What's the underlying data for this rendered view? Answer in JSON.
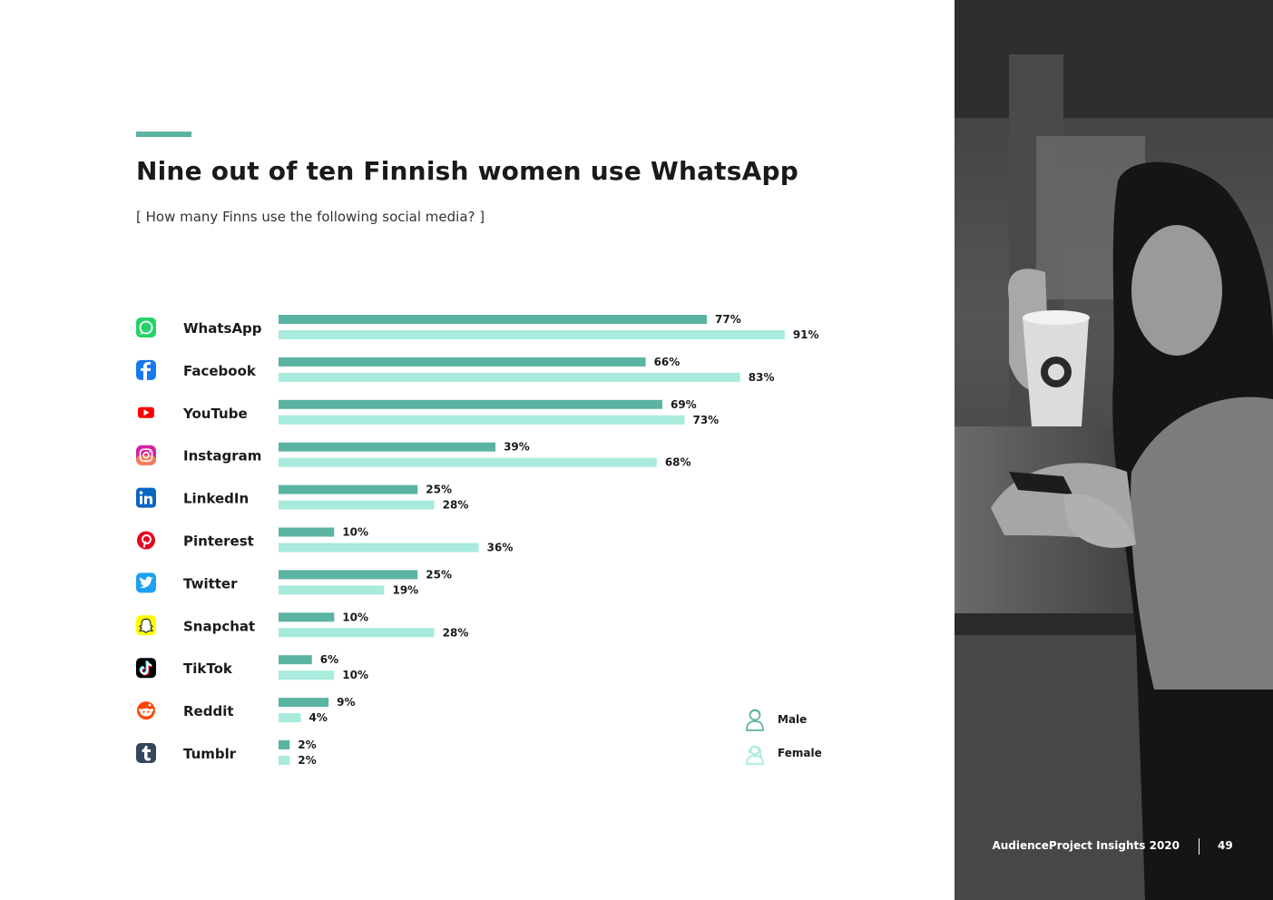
{
  "page": {
    "title": "Nine out of ten Finnish women use WhatsApp",
    "subtitle": "[ How many Finns use the following social media? ]",
    "footer_brand": "AudienceProject Insights 2020",
    "page_number": "49"
  },
  "legend": [
    {
      "label": "Male",
      "icon": "male-person-icon"
    },
    {
      "label": "Female",
      "icon": "female-person-icon"
    }
  ],
  "colors": {
    "accent": "#5bb3a2",
    "male": "#5bb3a2",
    "female": "#a8ebdd",
    "text": "#1a1a1a",
    "photo_dark": "#2f2f2f"
  },
  "chart_data": {
    "type": "bar",
    "orientation": "horizontal",
    "title": "Nine out of ten Finnish women use WhatsApp",
    "subtitle": "[ How many Finns use the following social media? ]",
    "xlabel": "",
    "ylabel": "",
    "xlim": [
      0,
      100
    ],
    "grid": false,
    "legend_position": "bottom-right",
    "categories": [
      "WhatsApp",
      "Facebook",
      "YouTube",
      "Instagram",
      "LinkedIn",
      "Pinterest",
      "Twitter",
      "Snapchat",
      "TikTok",
      "Reddit",
      "Tumblr"
    ],
    "icons": [
      "whatsapp-icon",
      "facebook-icon",
      "youtube-icon",
      "instagram-icon",
      "linkedin-icon",
      "pinterest-icon",
      "twitter-icon",
      "snapchat-icon",
      "tiktok-icon",
      "reddit-icon",
      "tumblr-icon"
    ],
    "series": [
      {
        "name": "Male",
        "values": [
          77,
          66,
          69,
          39,
          25,
          10,
          25,
          10,
          6,
          9,
          2
        ],
        "labels": [
          "77%",
          "66%",
          "69%",
          "39%",
          "25%",
          "10%",
          "25%",
          "10%",
          "6%",
          "9%",
          "2%"
        ]
      },
      {
        "name": "Female",
        "values": [
          91,
          83,
          73,
          68,
          28,
          36,
          19,
          28,
          10,
          4,
          2
        ],
        "labels": [
          "91%",
          "83%",
          "73%",
          "68%",
          "28%",
          "36%",
          "19%",
          "28%",
          "10%",
          "4%",
          "2%"
        ]
      }
    ]
  }
}
